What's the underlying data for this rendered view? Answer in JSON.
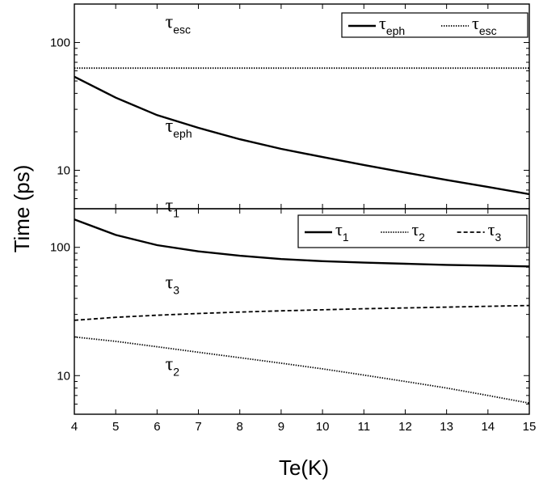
{
  "chart_data": [
    {
      "panel": "top",
      "type": "line",
      "ylabel": "Time (ps)",
      "xlabel": "Te(K)",
      "xlim": [
        4,
        15
      ],
      "ylim": [
        5,
        200
      ],
      "yscale": "log",
      "xticks": [
        4,
        5,
        6,
        7,
        8,
        9,
        10,
        11,
        12,
        13,
        14,
        15
      ],
      "yticks": [
        10,
        100
      ],
      "legend_position": "top-right",
      "series": [
        {
          "name": "τ_eph",
          "name_main": "τ",
          "name_sub": "eph",
          "style": "solid",
          "x": [
            4,
            5,
            6,
            7,
            8,
            9,
            10,
            11,
            12,
            13,
            14,
            15
          ],
          "y": [
            54,
            37,
            27,
            21.5,
            17.5,
            14.7,
            12.7,
            11,
            9.6,
            8.4,
            7.4,
            6.5
          ]
        },
        {
          "name": "τ_esc",
          "name_main": "τ",
          "name_sub": "esc",
          "style": "dotted",
          "x": [
            4,
            15
          ],
          "y": [
            63,
            63
          ]
        }
      ],
      "annotations": [
        {
          "main": "τ",
          "sub": "esc",
          "x": 6.2,
          "y": 130
        },
        {
          "main": "τ",
          "sub": "eph",
          "x": 6.2,
          "y": 20
        }
      ]
    },
    {
      "panel": "bottom",
      "type": "line",
      "xlim": [
        4,
        15
      ],
      "ylim": [
        5,
        200
      ],
      "yscale": "log",
      "xticks": [
        4,
        5,
        6,
        7,
        8,
        9,
        10,
        11,
        12,
        13,
        14,
        15
      ],
      "yticks": [
        10,
        100
      ],
      "legend_position": "top-right",
      "series": [
        {
          "name": "τ_1",
          "name_main": "τ",
          "name_sub": "1",
          "style": "solid",
          "x": [
            4,
            5,
            6,
            7,
            8,
            9,
            10,
            11,
            12,
            13,
            14,
            15
          ],
          "y": [
            165,
            125,
            104,
            93,
            86,
            81,
            78,
            76,
            74.5,
            73,
            72,
            71
          ]
        },
        {
          "name": "τ_2",
          "name_main": "τ",
          "name_sub": "2",
          "style": "dotted",
          "x": [
            4,
            5,
            6,
            7,
            8,
            9,
            10,
            11,
            12,
            13,
            14,
            15
          ],
          "y": [
            20,
            18.5,
            16.8,
            15.2,
            13.8,
            12.5,
            11.3,
            10.1,
            9,
            8,
            7,
            6.1
          ]
        },
        {
          "name": "τ_3",
          "name_main": "τ",
          "name_sub": "3",
          "style": "dashed",
          "x": [
            4,
            5,
            6,
            7,
            8,
            9,
            10,
            11,
            12,
            13,
            14,
            15
          ],
          "y": [
            27,
            28.5,
            29.6,
            30.5,
            31.3,
            32,
            32.6,
            33.2,
            33.7,
            34.2,
            34.7,
            35.2
          ]
        }
      ],
      "annotations": [
        {
          "main": "τ",
          "sub": "1",
          "x": 6.2,
          "y": 190
        },
        {
          "main": "τ",
          "sub": "3",
          "x": 6.2,
          "y": 48
        },
        {
          "main": "τ",
          "sub": "2",
          "x": 6.2,
          "y": 11
        }
      ]
    }
  ]
}
